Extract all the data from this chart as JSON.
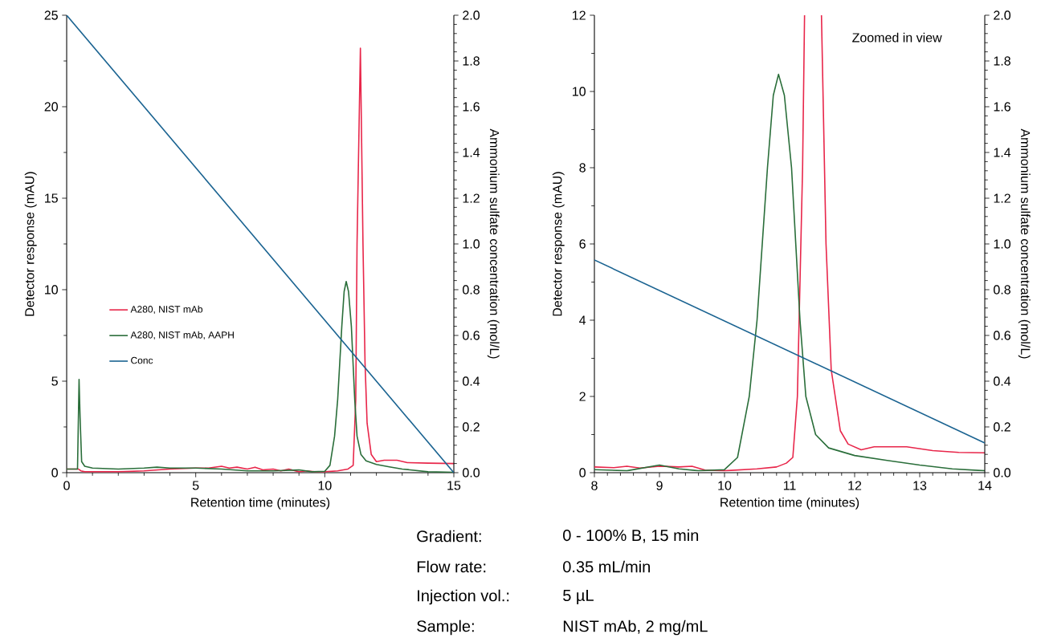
{
  "chart_data": [
    {
      "type": "line",
      "xlabel": "Retention time (minutes)",
      "ylabel": "Detector response (mAU)",
      "y2label": "Ammonium sulfate concentration (mol/L)",
      "xlim": [
        0,
        15
      ],
      "xticks": [
        0,
        5,
        10,
        15
      ],
      "ylim": [
        0,
        25
      ],
      "yticks": [
        0,
        5,
        10,
        15,
        20,
        25
      ],
      "y2lim": [
        0,
        2
      ],
      "y2ticks": [
        {
          "value": 0,
          "label": "0.0"
        },
        0.2,
        0.4,
        0.6,
        0.8,
        {
          "value": 1,
          "label": "1.0"
        },
        1.2,
        1.4,
        1.6,
        1.8,
        {
          "value": 2,
          "label": "2.0"
        }
      ],
      "legend": "left",
      "marker": "none",
      "line_style": "solid",
      "annotations": [
        "Gradient:",
        "0 - 100% B, 15 min",
        "Flow rate:",
        "0.35 mL/min",
        "Injection vol.:",
        "5 µL",
        "Sample:",
        "NIST mAb, 2 mg/mL"
      ],
      "series": [
        {
          "name": "A280, NIST mAb",
          "color": "#e8264a",
          "x": [
            0,
            0.45,
            0.55,
            0.7,
            1,
            2,
            3,
            4,
            5,
            5.5,
            6,
            6.3,
            6.6,
            7,
            7.3,
            7.6,
            8,
            8.3,
            8.6,
            9,
            9.3,
            9.6,
            10,
            10.5,
            10.9,
            11.1,
            11.2,
            11.25,
            11.38,
            11.48,
            11.56,
            11.64,
            11.8,
            12,
            12.3,
            12.8,
            13.2,
            14,
            15
          ],
          "values": [
            0.2,
            0.2,
            0.1,
            0.05,
            0.05,
            0.05,
            0.1,
            0.2,
            0.25,
            0.25,
            0.35,
            0.25,
            0.3,
            0.2,
            0.3,
            0.15,
            0.2,
            0.1,
            0.2,
            0.05,
            0.1,
            0.05,
            0.05,
            0.1,
            0.2,
            0.4,
            4,
            12.5,
            23.2,
            12.5,
            6,
            2.7,
            1,
            0.6,
            0.68,
            0.68,
            0.55,
            0.52,
            0.5
          ]
        },
        {
          "name": "A280, NIST mAb, AAPH",
          "color": "#2a6e3a",
          "x": [
            0,
            0.42,
            0.48,
            0.52,
            0.58,
            0.7,
            1,
            2,
            3,
            3.5,
            4,
            5,
            6,
            7,
            8,
            9,
            9.5,
            10,
            10.2,
            10.38,
            10.5,
            10.66,
            10.75,
            10.83,
            10.92,
            11.03,
            11.16,
            11.25,
            11.4,
            11.6,
            12,
            12.5,
            13,
            14,
            15
          ],
          "values": [
            0.2,
            0.2,
            5.1,
            3,
            0.6,
            0.35,
            0.25,
            0.2,
            0.25,
            0.3,
            0.25,
            0.25,
            0.2,
            0.1,
            0.1,
            0.15,
            0.05,
            0.08,
            0.4,
            2,
            4,
            8,
            9.9,
            10.45,
            9.9,
            8,
            4,
            2,
            1,
            0.65,
            0.45,
            0.32,
            0.2,
            0.05,
            0.02
          ]
        },
        {
          "name": "Conc",
          "color": "#1a6391",
          "axis": "y2",
          "x": [
            0,
            15
          ],
          "values": [
            2,
            0
          ]
        }
      ]
    },
    {
      "type": "line",
      "xlabel": "Retention time (minutes)",
      "ylabel": "Detector response (mAU)",
      "y2label": "Ammonium sulfate concentration (mol/L)",
      "xlim": [
        8,
        14
      ],
      "xticks": [
        8,
        9,
        10,
        11,
        12,
        13,
        14
      ],
      "ylim": [
        0,
        12
      ],
      "yticks": [
        0,
        2,
        4,
        6,
        8,
        10,
        12
      ],
      "y2lim": [
        0,
        2
      ],
      "y2ticks": [
        {
          "value": 0,
          "label": "0.0"
        },
        0.2,
        0.4,
        0.6,
        0.8,
        {
          "value": 1,
          "label": "1.0"
        },
        1.2,
        1.4,
        1.6,
        1.8,
        {
          "value": 2,
          "label": "2.0"
        }
      ],
      "marker": "none",
      "line_style": "solid",
      "annotations": [
        "Zoomed in view"
      ],
      "series": [
        {
          "color": "#e8264a",
          "x": [
            8,
            8.3,
            8.5,
            8.7,
            9,
            9.3,
            9.5,
            9.7,
            10,
            10.5,
            10.8,
            10.95,
            11.05,
            11.12,
            11.2,
            11.23,
            11.36,
            11.49,
            11.56,
            11.64,
            11.78,
            11.9,
            12.1,
            12.3,
            12.8,
            13.2,
            13.6,
            14
          ],
          "values": [
            0.15,
            0.13,
            0.17,
            0.12,
            0.17,
            0.15,
            0.17,
            0.07,
            0.05,
            0.1,
            0.15,
            0.25,
            0.4,
            2,
            8,
            12,
            null,
            12,
            6,
            2.7,
            1.1,
            0.75,
            0.6,
            0.68,
            0.68,
            0.58,
            0.53,
            0.52
          ]
        },
        {
          "color": "#2a6e3a",
          "x": [
            8,
            8.5,
            9,
            9.3,
            9.6,
            10,
            10.2,
            10.38,
            10.5,
            10.66,
            10.75,
            10.83,
            10.92,
            11.03,
            11.16,
            11.25,
            11.4,
            11.6,
            12,
            12.5,
            13,
            13.5,
            14
          ],
          "values": [
            0.08,
            0.05,
            0.2,
            0.1,
            0.05,
            0.08,
            0.4,
            2,
            4,
            8,
            9.9,
            10.45,
            9.9,
            8,
            4,
            2,
            1,
            0.65,
            0.45,
            0.32,
            0.2,
            0.1,
            0.05
          ]
        },
        {
          "color": "#1a6391",
          "axis": "y2",
          "x": [
            8,
            14
          ],
          "values": [
            0.93,
            0.13
          ]
        }
      ]
    }
  ]
}
